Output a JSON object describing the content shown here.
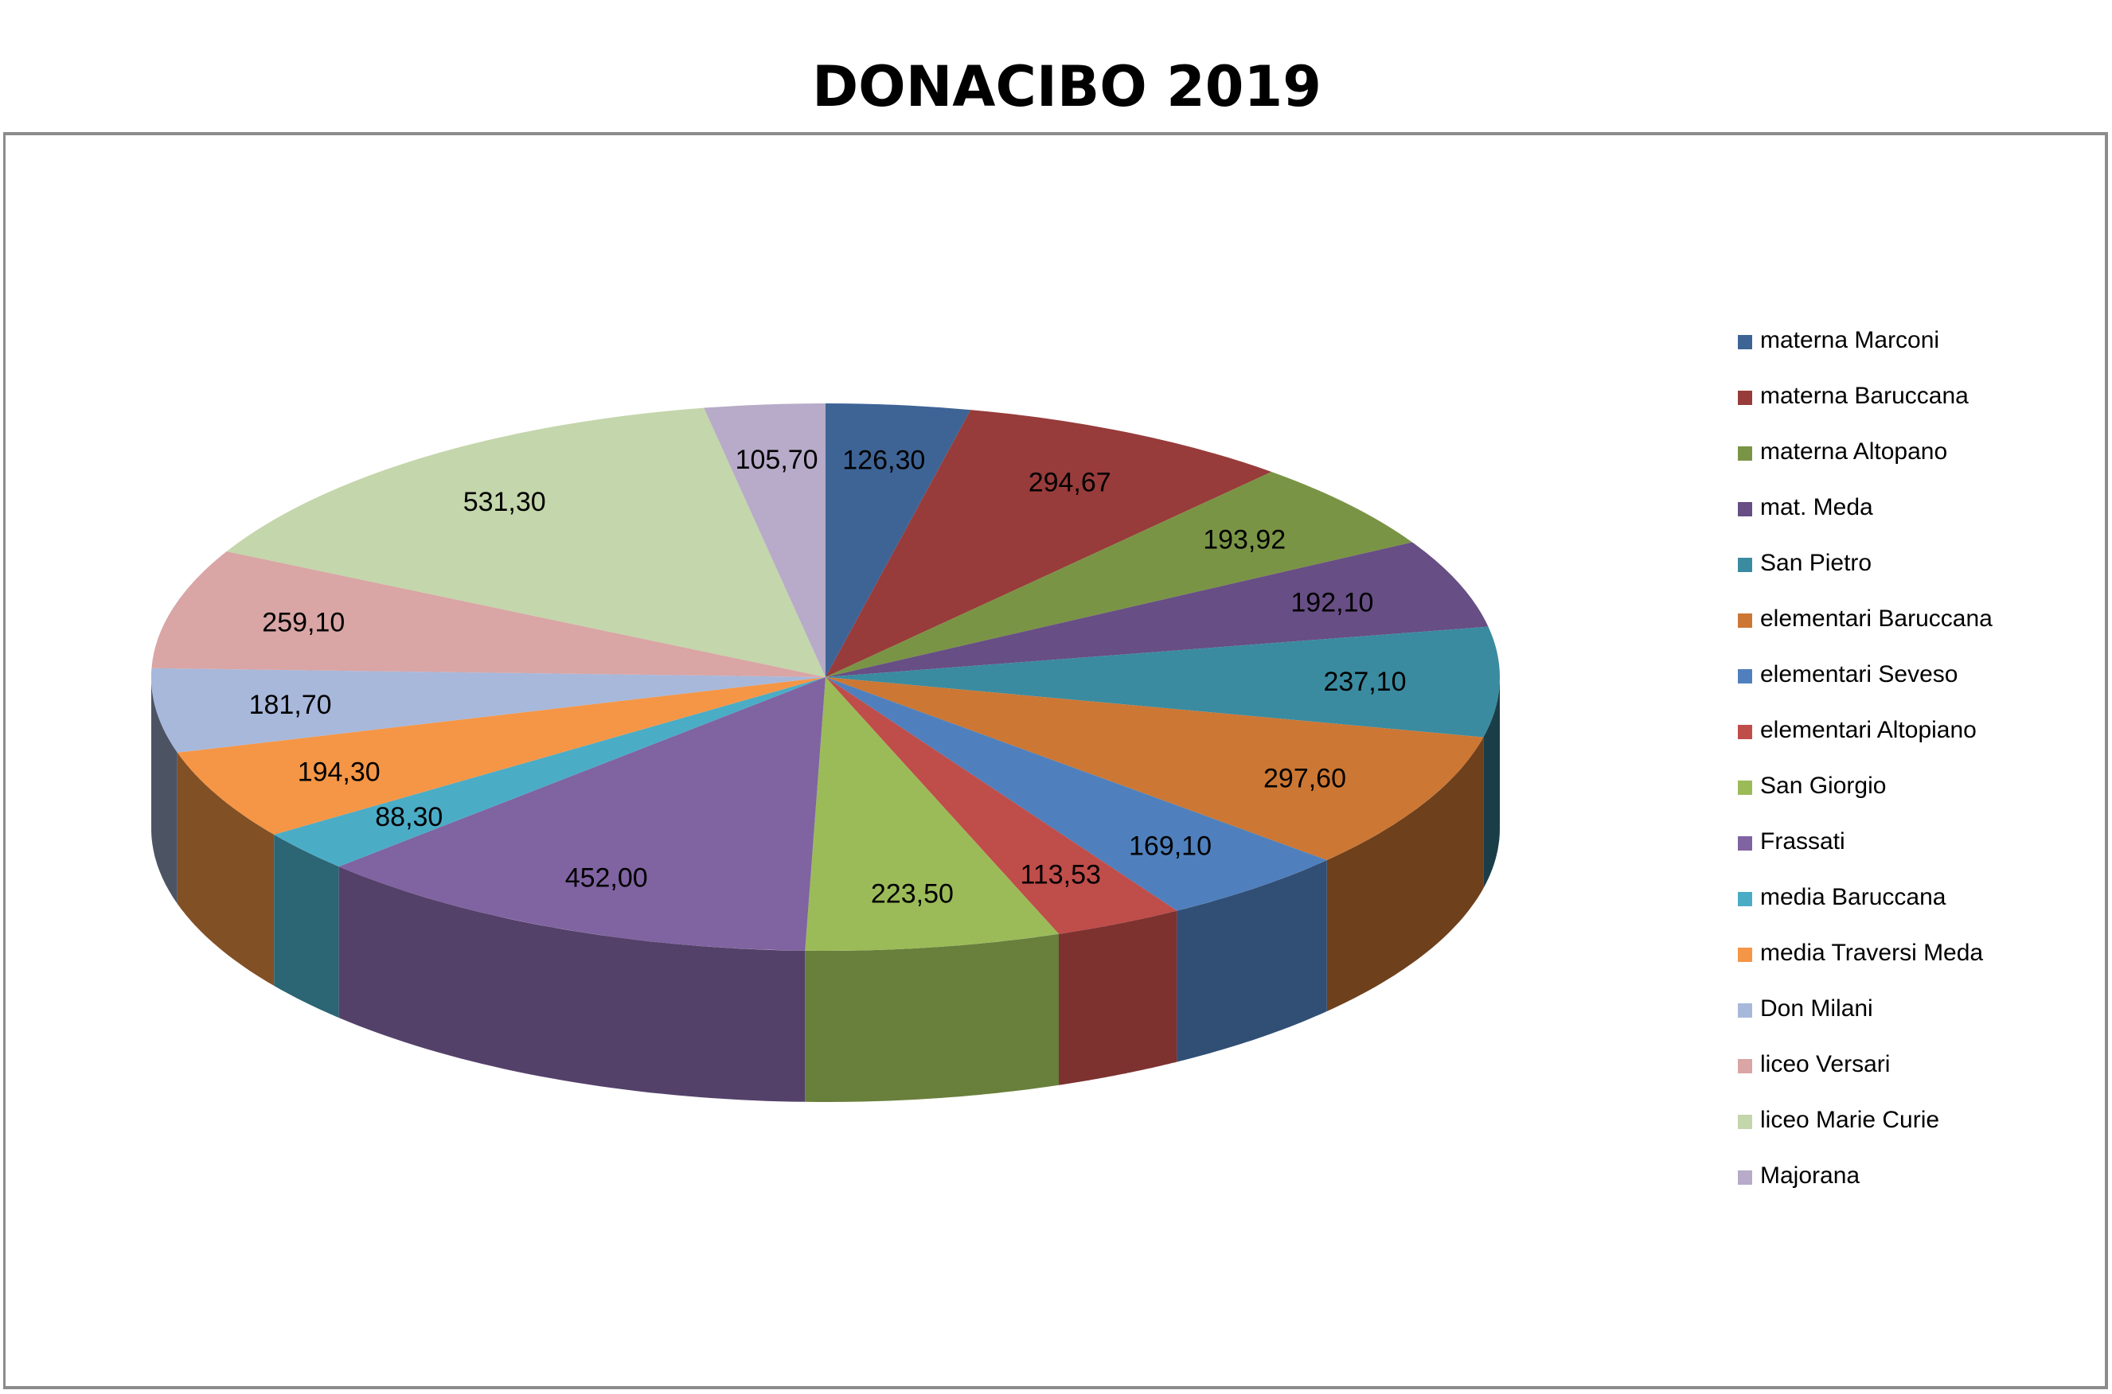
{
  "chart_data": {
    "type": "pie",
    "title": "DONACIBO  2019",
    "categories": [
      "materna Marconi",
      "materna Baruccana",
      "materna Altopano",
      "mat. Meda",
      "San Pietro",
      "elementari Baruccana",
      "elementari Seveso",
      "elementari Altopiano",
      "San Giorgio",
      "Frassati",
      "media Baruccana",
      "media Traversi Meda",
      "Don Milani",
      "liceo Versari",
      "liceo Marie  Curie",
      "Majorana"
    ],
    "values": [
      126.3,
      294.67,
      193.92,
      192.1,
      237.1,
      297.6,
      169.1,
      113.53,
      223.5,
      452.0,
      88.3,
      194.3,
      181.7,
      259.1,
      531.3,
      105.7
    ],
    "value_labels": [
      "126,30",
      "294,67",
      "193,92",
      "192,10",
      "237,10",
      "297,60",
      "169,10",
      "113,53",
      "223,50",
      "452,00",
      "88,30",
      "194,30",
      "181,70",
      "259,10",
      "531,30",
      "105,70"
    ],
    "colors": [
      "#3e6496",
      "#973c3a",
      "#7a9445",
      "#674e84",
      "#3a8ba0",
      "#cc7734",
      "#4f80bd",
      "#bf4d4a",
      "#9bbb59",
      "#8063a1",
      "#4bacc6",
      "#f59646",
      "#a7b8db",
      "#d9a5a5",
      "#c4d6ab",
      "#b7abc9"
    ],
    "style": "3d",
    "legend_position": "right"
  }
}
